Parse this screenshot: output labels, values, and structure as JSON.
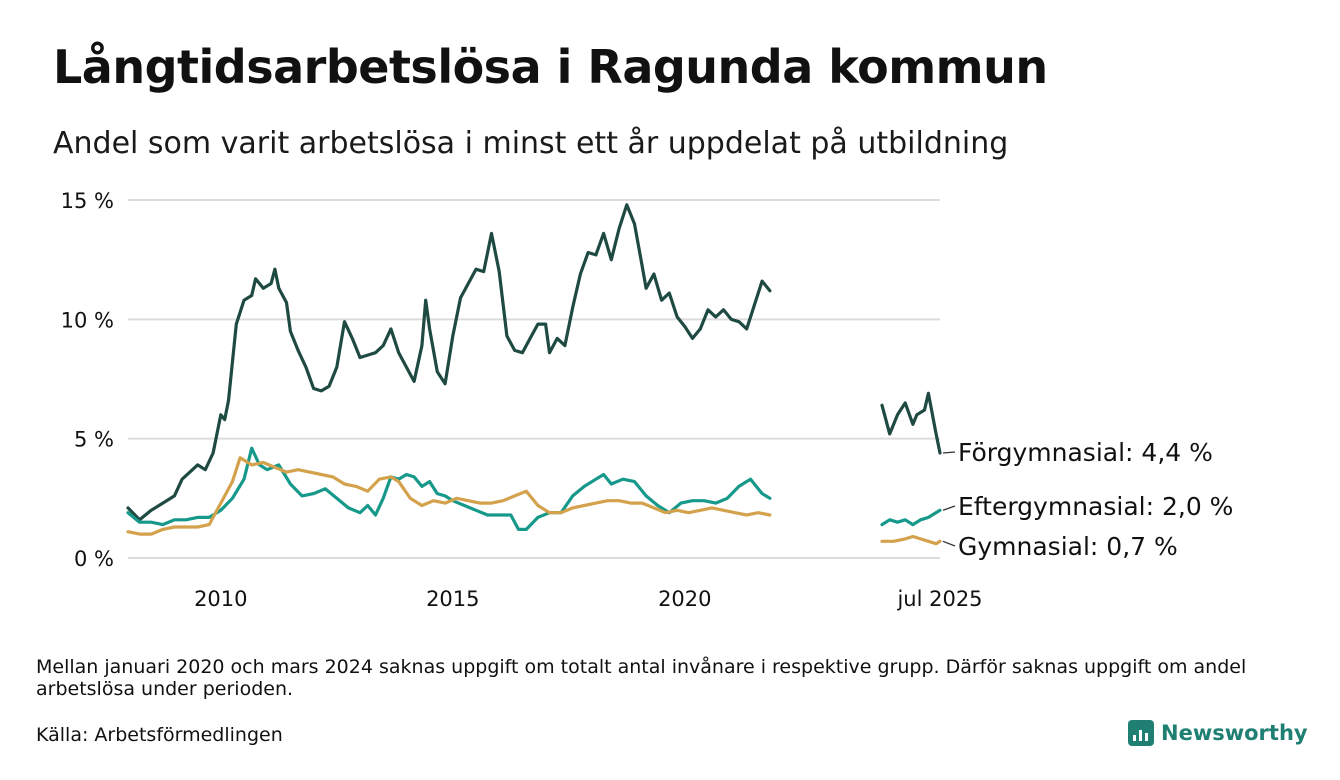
{
  "header": {
    "title": "Långtidsarbetslösa i Ragunda kommun",
    "subtitle": "Andel som varit arbetslösa i minst ett år uppdelat på utbildning"
  },
  "footer": {
    "note": "Mellan januari 2020 och mars 2024 saknas uppgift om totalt antal invånare i respektive grupp. Därför saknas uppgift om andel arbetslösa under perioden.",
    "source": "Källa: Arbetsförmedlingen",
    "brand": "Newsworthy",
    "brand_icon": "newsworthy-chart-logo-icon"
  },
  "chart_data": {
    "type": "line",
    "title": "Långtidsarbetslösa i Ragunda kommun",
    "subtitle": "Andel som varit arbetslösa i minst ett år uppdelat på utbildning",
    "xlabel": "",
    "ylabel": "",
    "ylim": [
      0,
      15
    ],
    "y_ticks": [
      0,
      5,
      10,
      15
    ],
    "y_tick_labels": [
      "0 %",
      "5 %",
      "10 %",
      "15 %"
    ],
    "x_range": [
      "2008-01",
      "2025-07"
    ],
    "x_ticks": [
      "2010-01",
      "2015-01",
      "2020-01",
      "2025-07"
    ],
    "x_tick_labels": [
      "2010",
      "2015",
      "2020",
      "jul 2025"
    ],
    "grid": "horizontal",
    "legend": "end-of-line labels",
    "series": [
      {
        "name": "Förgymnasial",
        "end_label": "Förgymnasial: 4,4 %",
        "color": "#1f4a42",
        "segments": [
          [
            [
              "2008-01",
              2.1
            ],
            [
              "2008-04",
              1.6
            ],
            [
              "2008-07",
              2.0
            ],
            [
              "2008-10",
              2.3
            ],
            [
              "2009-01",
              2.6
            ],
            [
              "2009-03",
              3.3
            ],
            [
              "2009-05",
              3.6
            ],
            [
              "2009-07",
              3.9
            ],
            [
              "2009-09",
              3.7
            ],
            [
              "2009-11",
              4.4
            ],
            [
              "2010-01",
              6.0
            ],
            [
              "2010-02",
              5.8
            ],
            [
              "2010-03",
              6.6
            ],
            [
              "2010-05",
              9.8
            ],
            [
              "2010-07",
              10.8
            ],
            [
              "2010-09",
              11.0
            ],
            [
              "2010-10",
              11.7
            ],
            [
              "2010-12",
              11.3
            ],
            [
              "2011-02",
              11.5
            ],
            [
              "2011-03",
              12.1
            ],
            [
              "2011-04",
              11.3
            ],
            [
              "2011-06",
              10.7
            ],
            [
              "2011-07",
              9.5
            ],
            [
              "2011-09",
              8.7
            ],
            [
              "2011-11",
              8.0
            ],
            [
              "2012-01",
              7.1
            ],
            [
              "2012-03",
              7.0
            ],
            [
              "2012-05",
              7.2
            ],
            [
              "2012-07",
              8.0
            ],
            [
              "2012-09",
              9.9
            ],
            [
              "2012-11",
              9.2
            ],
            [
              "2013-01",
              8.4
            ],
            [
              "2013-03",
              8.5
            ],
            [
              "2013-05",
              8.6
            ],
            [
              "2013-07",
              8.9
            ],
            [
              "2013-09",
              9.6
            ],
            [
              "2013-11",
              8.6
            ],
            [
              "2014-01",
              8.0
            ],
            [
              "2014-03",
              7.4
            ],
            [
              "2014-05",
              8.9
            ],
            [
              "2014-06",
              10.8
            ],
            [
              "2014-07",
              9.6
            ],
            [
              "2014-09",
              7.8
            ],
            [
              "2014-11",
              7.3
            ],
            [
              "2015-01",
              9.3
            ],
            [
              "2015-03",
              10.9
            ],
            [
              "2015-05",
              11.5
            ],
            [
              "2015-07",
              12.1
            ],
            [
              "2015-09",
              12.0
            ],
            [
              "2015-11",
              13.6
            ],
            [
              "2016-01",
              12.0
            ],
            [
              "2016-03",
              9.3
            ],
            [
              "2016-05",
              8.7
            ],
            [
              "2016-07",
              8.6
            ],
            [
              "2016-09",
              9.2
            ],
            [
              "2016-11",
              9.8
            ],
            [
              "2017-01",
              9.8
            ],
            [
              "2017-02",
              8.6
            ],
            [
              "2017-04",
              9.2
            ],
            [
              "2017-06",
              8.9
            ],
            [
              "2017-08",
              10.5
            ],
            [
              "2017-10",
              11.9
            ],
            [
              "2017-12",
              12.8
            ],
            [
              "2018-02",
              12.7
            ],
            [
              "2018-04",
              13.6
            ],
            [
              "2018-06",
              12.5
            ],
            [
              "2018-08",
              13.8
            ],
            [
              "2018-10",
              14.8
            ],
            [
              "2018-12",
              14.0
            ],
            [
              "2019-02",
              12.2
            ],
            [
              "2019-03",
              11.3
            ],
            [
              "2019-05",
              11.9
            ],
            [
              "2019-07",
              10.8
            ],
            [
              "2019-09",
              11.1
            ],
            [
              "2019-11",
              10.1
            ],
            [
              "2020-01",
              9.7
            ],
            [
              "2020-03",
              9.2
            ],
            [
              "2020-05",
              9.6
            ],
            [
              "2020-07",
              10.4
            ],
            [
              "2020-09",
              10.1
            ],
            [
              "2020-11",
              10.4
            ],
            [
              "2021-01",
              10.0
            ],
            [
              "2021-03",
              9.9
            ],
            [
              "2021-05",
              9.6
            ],
            [
              "2021-07",
              10.6
            ],
            [
              "2021-09",
              11.6
            ],
            [
              "2021-11",
              11.2
            ]
          ],
          [
            [
              "2024-04",
              6.4
            ],
            [
              "2024-06",
              5.2
            ],
            [
              "2024-08",
              6.0
            ],
            [
              "2024-10",
              6.5
            ],
            [
              "2024-12",
              5.6
            ],
            [
              "2025-01",
              6.0
            ],
            [
              "2025-03",
              6.2
            ],
            [
              "2025-04",
              6.9
            ],
            [
              "2025-06",
              5.2
            ],
            [
              "2025-07",
              4.4
            ]
          ]
        ]
      },
      {
        "name": "Eftergymnasial",
        "end_label": "Eftergymnasial: 2,0 %",
        "color": "#16998a",
        "segments": [
          [
            [
              "2008-01",
              1.9
            ],
            [
              "2008-04",
              1.5
            ],
            [
              "2008-07",
              1.5
            ],
            [
              "2008-10",
              1.4
            ],
            [
              "2009-01",
              1.6
            ],
            [
              "2009-04",
              1.6
            ],
            [
              "2009-07",
              1.7
            ],
            [
              "2009-10",
              1.7
            ],
            [
              "2010-01",
              2.0
            ],
            [
              "2010-04",
              2.5
            ],
            [
              "2010-07",
              3.3
            ],
            [
              "2010-09",
              4.6
            ],
            [
              "2010-11",
              3.9
            ],
            [
              "2011-01",
              3.7
            ],
            [
              "2011-04",
              3.9
            ],
            [
              "2011-07",
              3.1
            ],
            [
              "2011-10",
              2.6
            ],
            [
              "2012-01",
              2.7
            ],
            [
              "2012-04",
              2.9
            ],
            [
              "2012-07",
              2.5
            ],
            [
              "2012-10",
              2.1
            ],
            [
              "2013-01",
              1.9
            ],
            [
              "2013-03",
              2.2
            ],
            [
              "2013-05",
              1.8
            ],
            [
              "2013-07",
              2.5
            ],
            [
              "2013-09",
              3.4
            ],
            [
              "2013-11",
              3.3
            ],
            [
              "2014-01",
              3.5
            ],
            [
              "2014-03",
              3.4
            ],
            [
              "2014-05",
              3.0
            ],
            [
              "2014-07",
              3.2
            ],
            [
              "2014-09",
              2.7
            ],
            [
              "2014-11",
              2.6
            ],
            [
              "2015-01",
              2.4
            ],
            [
              "2015-04",
              2.2
            ],
            [
              "2015-07",
              2.0
            ],
            [
              "2015-10",
              1.8
            ],
            [
              "2016-01",
              1.8
            ],
            [
              "2016-04",
              1.8
            ],
            [
              "2016-06",
              1.2
            ],
            [
              "2016-08",
              1.2
            ],
            [
              "2016-11",
              1.7
            ],
            [
              "2017-02",
              1.9
            ],
            [
              "2017-05",
              1.9
            ],
            [
              "2017-08",
              2.6
            ],
            [
              "2017-11",
              3.0
            ],
            [
              "2018-02",
              3.3
            ],
            [
              "2018-04",
              3.5
            ],
            [
              "2018-06",
              3.1
            ],
            [
              "2018-09",
              3.3
            ],
            [
              "2018-12",
              3.2
            ],
            [
              "2019-03",
              2.6
            ],
            [
              "2019-06",
              2.2
            ],
            [
              "2019-09",
              1.9
            ],
            [
              "2019-12",
              2.3
            ],
            [
              "2020-03",
              2.4
            ],
            [
              "2020-06",
              2.4
            ],
            [
              "2020-09",
              2.3
            ],
            [
              "2020-12",
              2.5
            ],
            [
              "2021-03",
              3.0
            ],
            [
              "2021-06",
              3.3
            ],
            [
              "2021-09",
              2.7
            ],
            [
              "2021-11",
              2.5
            ]
          ],
          [
            [
              "2024-04",
              1.4
            ],
            [
              "2024-06",
              1.6
            ],
            [
              "2024-08",
              1.5
            ],
            [
              "2024-10",
              1.6
            ],
            [
              "2024-12",
              1.4
            ],
            [
              "2025-02",
              1.6
            ],
            [
              "2025-04",
              1.7
            ],
            [
              "2025-07",
              2.0
            ]
          ]
        ]
      },
      {
        "name": "Gymnasial",
        "end_label": "Gymnasial: 0,7 %",
        "color": "#d4a24c",
        "segments": [
          [
            [
              "2008-01",
              1.1
            ],
            [
              "2008-04",
              1.0
            ],
            [
              "2008-07",
              1.0
            ],
            [
              "2008-10",
              1.2
            ],
            [
              "2009-01",
              1.3
            ],
            [
              "2009-04",
              1.3
            ],
            [
              "2009-07",
              1.3
            ],
            [
              "2009-10",
              1.4
            ],
            [
              "2010-01",
              2.3
            ],
            [
              "2010-04",
              3.2
            ],
            [
              "2010-06",
              4.2
            ],
            [
              "2010-09",
              3.9
            ],
            [
              "2010-12",
              4.0
            ],
            [
              "2011-03",
              3.8
            ],
            [
              "2011-06",
              3.6
            ],
            [
              "2011-09",
              3.7
            ],
            [
              "2011-12",
              3.6
            ],
            [
              "2012-03",
              3.5
            ],
            [
              "2012-06",
              3.4
            ],
            [
              "2012-09",
              3.1
            ],
            [
              "2012-12",
              3.0
            ],
            [
              "2013-03",
              2.8
            ],
            [
              "2013-06",
              3.3
            ],
            [
              "2013-09",
              3.4
            ],
            [
              "2013-11",
              3.2
            ],
            [
              "2014-02",
              2.5
            ],
            [
              "2014-05",
              2.2
            ],
            [
              "2014-08",
              2.4
            ],
            [
              "2014-11",
              2.3
            ],
            [
              "2015-02",
              2.5
            ],
            [
              "2015-05",
              2.4
            ],
            [
              "2015-08",
              2.3
            ],
            [
              "2015-11",
              2.3
            ],
            [
              "2016-02",
              2.4
            ],
            [
              "2016-05",
              2.6
            ],
            [
              "2016-08",
              2.8
            ],
            [
              "2016-11",
              2.2
            ],
            [
              "2017-02",
              1.9
            ],
            [
              "2017-05",
              1.9
            ],
            [
              "2017-08",
              2.1
            ],
            [
              "2017-11",
              2.2
            ],
            [
              "2018-02",
              2.3
            ],
            [
              "2018-05",
              2.4
            ],
            [
              "2018-08",
              2.4
            ],
            [
              "2018-11",
              2.3
            ],
            [
              "2019-02",
              2.3
            ],
            [
              "2019-05",
              2.1
            ],
            [
              "2019-08",
              1.9
            ],
            [
              "2019-11",
              2.0
            ],
            [
              "2020-02",
              1.9
            ],
            [
              "2020-05",
              2.0
            ],
            [
              "2020-08",
              2.1
            ],
            [
              "2020-11",
              2.0
            ],
            [
              "2021-02",
              1.9
            ],
            [
              "2021-05",
              1.8
            ],
            [
              "2021-08",
              1.9
            ],
            [
              "2021-11",
              1.8
            ]
          ],
          [
            [
              "2024-04",
              0.7
            ],
            [
              "2024-07",
              0.7
            ],
            [
              "2024-10",
              0.8
            ],
            [
              "2024-12",
              0.9
            ],
            [
              "2025-02",
              0.8
            ],
            [
              "2025-04",
              0.7
            ],
            [
              "2025-06",
              0.6
            ],
            [
              "2025-07",
              0.7
            ]
          ]
        ]
      }
    ]
  }
}
